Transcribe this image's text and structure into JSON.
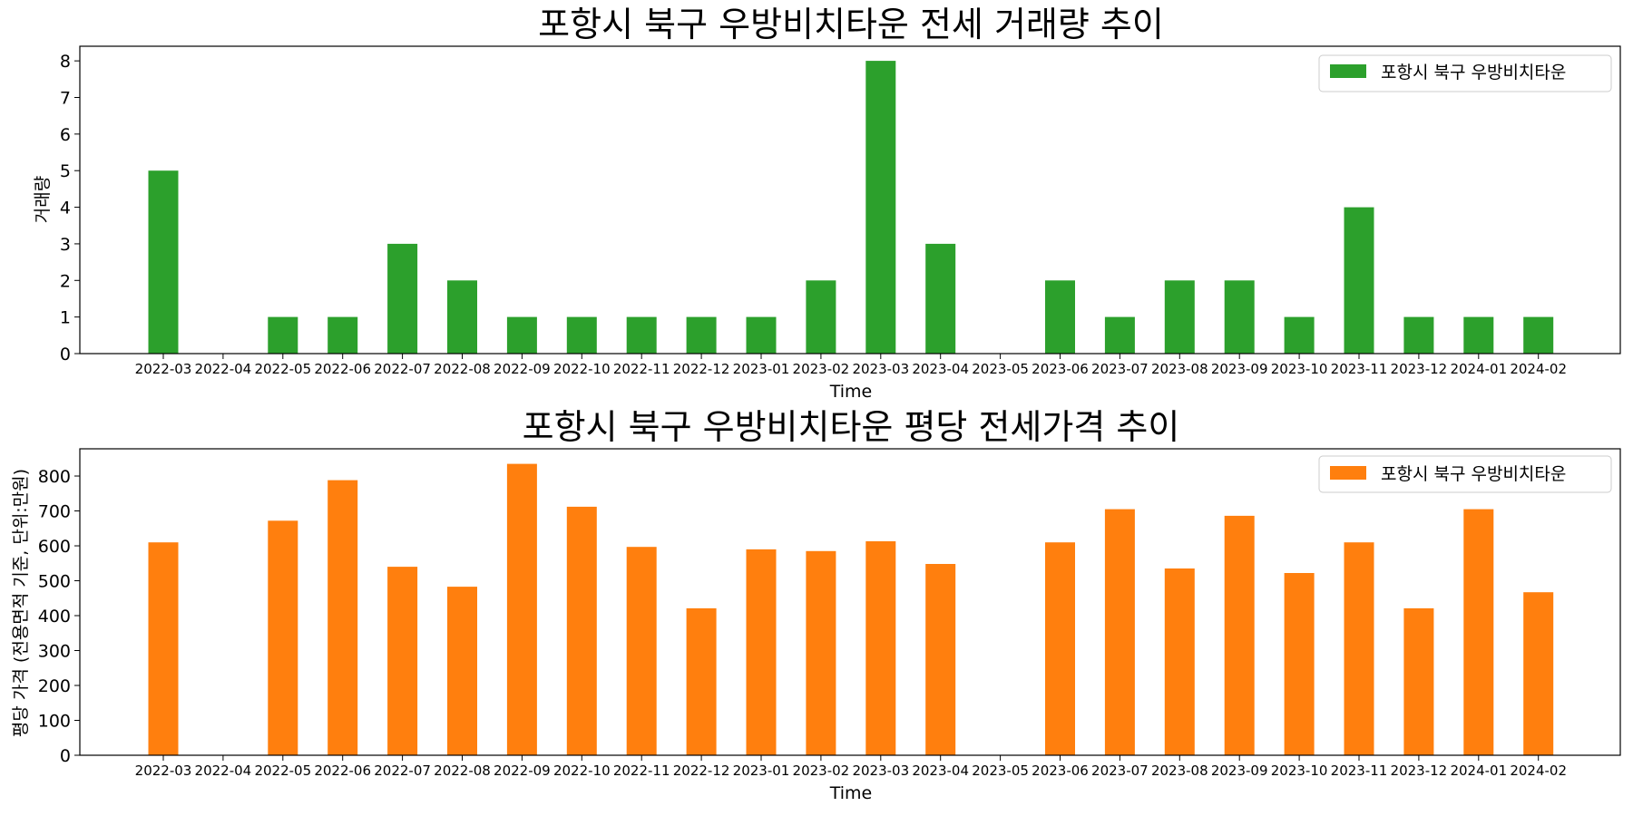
{
  "chart_data": [
    {
      "type": "bar",
      "title": "포항시 북구 우방비치타운 전세 거래량 추이",
      "xlabel": "Time",
      "ylabel": "거래량",
      "ylim": [
        0,
        8.4
      ],
      "yticks": [
        0,
        1,
        2,
        3,
        4,
        5,
        6,
        7,
        8
      ],
      "color": "#2ca02c",
      "legend": {
        "label": "포항시 북구 우방비치타운",
        "placement": "top-right"
      },
      "categories": [
        "2022-03",
        "2022-04",
        "2022-05",
        "2022-06",
        "2022-07",
        "2022-08",
        "2022-09",
        "2022-10",
        "2022-11",
        "2022-12",
        "2023-01",
        "2023-02",
        "2023-03",
        "2023-04",
        "2023-05",
        "2023-06",
        "2023-07",
        "2023-08",
        "2023-09",
        "2023-10",
        "2023-11",
        "2023-12",
        "2024-01",
        "2024-02"
      ],
      "values": [
        5,
        0,
        1,
        1,
        3,
        2,
        1,
        1,
        1,
        1,
        1,
        2,
        8,
        3,
        0,
        2,
        1,
        2,
        2,
        1,
        4,
        1,
        1,
        1
      ]
    },
    {
      "type": "bar",
      "title": "포항시 북구 우방비치타운 평당 전세가격 추이",
      "xlabel": "Time",
      "ylabel": "평당 가격 (전용면적 기준, 단위:만원)",
      "ylim": [
        0,
        878
      ],
      "yticks": [
        0,
        100,
        200,
        300,
        400,
        500,
        600,
        700,
        800
      ],
      "color": "#ff7f0e",
      "legend": {
        "label": "포항시 북구 우방비치타운",
        "placement": "top-right"
      },
      "categories": [
        "2022-03",
        "2022-04",
        "2022-05",
        "2022-06",
        "2022-07",
        "2022-08",
        "2022-09",
        "2022-10",
        "2022-11",
        "2022-12",
        "2023-01",
        "2023-02",
        "2023-03",
        "2023-04",
        "2023-05",
        "2023-06",
        "2023-07",
        "2023-08",
        "2023-09",
        "2023-10",
        "2023-11",
        "2023-12",
        "2024-01",
        "2024-02"
      ],
      "values": [
        610,
        0,
        672,
        788,
        540,
        483,
        835,
        712,
        597,
        421,
        590,
        585,
        613,
        548,
        0,
        610,
        705,
        535,
        686,
        522,
        610,
        421,
        705,
        467
      ]
    }
  ]
}
